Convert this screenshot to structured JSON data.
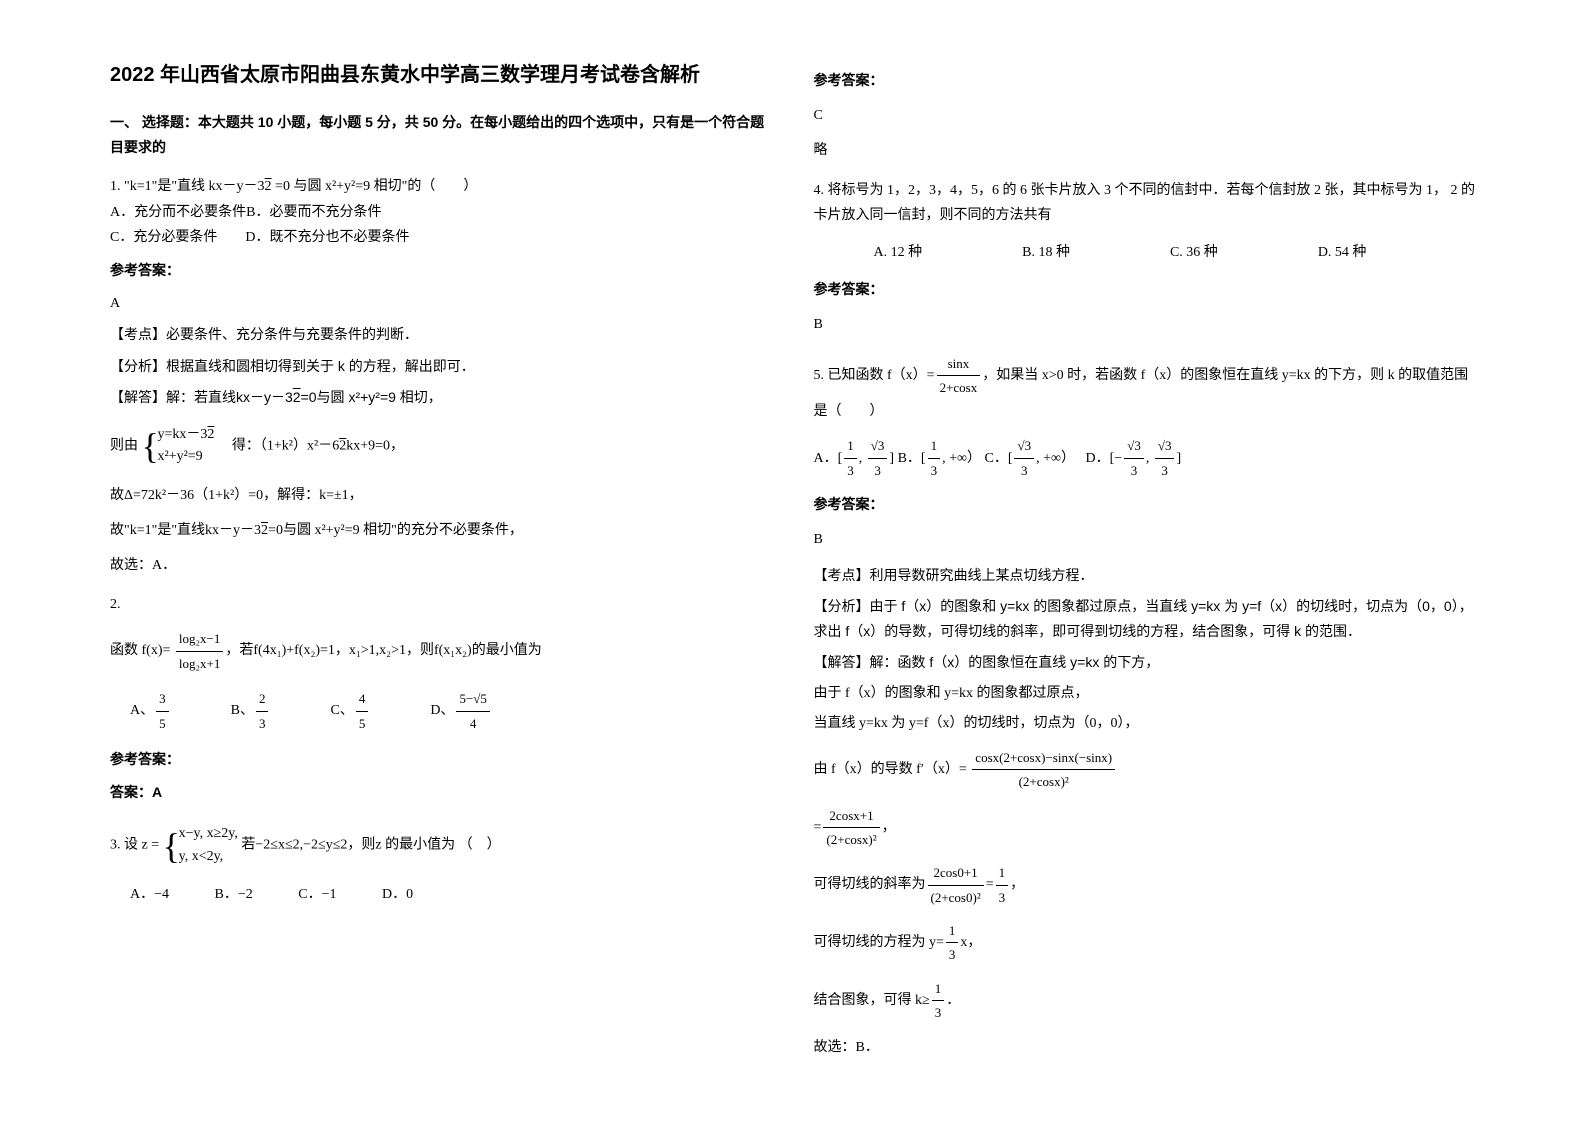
{
  "title": "2022 年山西省太原市阳曲县东黄水中学高三数学理月考试卷含解析",
  "section_a": "一、 选择题：本大题共 10 小题，每小题 5 分，共 50 分。在每小题给出的四个选项中，只有是一个符合题目要求的",
  "q1": {
    "stem_prefix": "1. \"k=1\"是\"直线 kx－y－3",
    "stem_suffix": " =0 与圆 x²+y²=9 相切\"的（　　）",
    "opt_a": "A．充分而不必要条件",
    "opt_b": "B．必要而不充分条件",
    "opt_c": "C．充分必要条件　　",
    "opt_d": "D．既不充分也不必要条件",
    "ans_label": "参考答案：",
    "ans": "A",
    "kp": "【考点】必要条件、充分条件与充要条件的判断．",
    "fx": "【分析】根据直线和圆相切得到关于 k 的方程，解出即可．",
    "jd_prefix": "【解答】解：若直线",
    "jd_mid": "=0与圆 x²+y²=9 相切，",
    "sys1_a": "y=kx－3",
    "sys1_b": "x²+y²=9",
    "sys_prefix": "则由",
    "sys_suffix": "　得：（1+k²）x²－6",
    "sys_suffix2": "kx+9=0，",
    "delta": "故Δ=72k²－36（1+k²）=0，解得：k=±1，",
    "conc_prefix": "故\"k=1\"是\"直线",
    "conc_suffix": "=0与圆 x²+y²=9 相切\"的充分不必要条件，",
    "pick": "故选：A．",
    "sqrt2": "√2"
  },
  "q2": {
    "num": "2.",
    "func_label": "函数",
    "func_expr1": "f(x)=",
    "func_num": "log₂x−1",
    "func_den": "log₂x+1",
    "cond_prefix": "，若",
    "cond_expr": "f(4x₁)+f(x₂)=1",
    "cond_mid": "，x₁>1,x₂>1，则",
    "cond_target": "f(x₁x₂)",
    "cond_suffix": "的最小值为",
    "opt_a_label": "A、",
    "opt_a_num": "3",
    "opt_a_den": "5",
    "opt_b_label": "B、",
    "opt_b_num": "2",
    "opt_b_den": "3",
    "opt_c_label": "C、",
    "opt_c_num": "4",
    "opt_c_den": "5",
    "opt_d_label": "D、",
    "opt_d_num": "5−√5",
    "opt_d_den": "4",
    "ans_label": "参考答案：",
    "ans": "答案：A"
  },
  "q3": {
    "prefix": "3. 设",
    "z_eq": "z =",
    "sys_a": "x−y,  x≥2y,",
    "sys_b": "y,      x<2y,",
    "cond_prefix": "若",
    "cond": "−2≤x≤2,−2≤y≤2",
    "suffix": "，则z 的最小值为 （　）",
    "opt_a": "A．−4",
    "opt_b": "B．−2",
    "opt_c": "C．−1",
    "opt_d": "D．0"
  },
  "q3ans": {
    "label": "参考答案：",
    "ans": "C",
    "brief": "略"
  },
  "q4": {
    "stem": "4. 将标号为 1，2，3，4，5，6 的 6 张卡片放入 3 个不同的信封中．若每个信封放 2 张，其中标号为 1， 2 的卡片放入同一信封，则不同的方法共有",
    "opt_a": "A.  12 种",
    "opt_b": "B.    18 种",
    "opt_c": "C. 36 种",
    "opt_d": "D.     54 种",
    "ans_label": "参考答案：",
    "ans": "B"
  },
  "q5": {
    "stem_prefix": "5. 已知函数 f（x）=",
    "frac_num": "sinx",
    "frac_den": "2+cosx",
    "stem_suffix": "，如果当 x>0 时，若函数 f（x）的图象恒在直线 y=kx 的下方，则 k 的取值范围是（　　）",
    "opt_a_label": "A．[",
    "opt_a_n1": "1",
    "opt_a_d1": "3",
    "opt_a_sep": ", ",
    "opt_a_n2": "√3",
    "opt_a_d2": "3",
    "opt_a_close": "]",
    "opt_b_label": "B．[",
    "opt_b_n1": "1",
    "opt_b_d1": "3",
    "opt_b_close": ", +∞）",
    "opt_c_label": "C．[",
    "opt_c_n1": "√3",
    "opt_c_d1": "3",
    "opt_c_close": ", +∞）",
    "opt_d_label": "D．[−",
    "opt_d_n1": "√3",
    "opt_d_d1": "3",
    "opt_d_sep": ", ",
    "opt_d_n2": "√3",
    "opt_d_d2": "3",
    "opt_d_close": "]",
    "ans_label": "参考答案：",
    "ans": "B",
    "kp": "【考点】利用导数研究曲线上某点切线方程．",
    "fx": "【分析】由于 f（x）的图象和 y=kx 的图象都过原点，当直线 y=kx 为 y=f（x）的切线时，切点为（0，0），求出 f（x）的导数，可得切线的斜率，即可得到切线的方程，结合图象，可得 k 的范围．",
    "jd1": "【解答】解：函数 f（x）的图象恒在直线 y=kx 的下方，",
    "jd2": "由于 f（x）的图象和 y=kx 的图象都过原点，",
    "jd3": "当直线 y=kx 为 y=f（x）的切线时，切点为（0，0），",
    "deriv_prefix": "由 f（x）的导数 f′（x）=",
    "deriv_num": "cosx(2+cosx)−sinx(−sinx)",
    "deriv_den": "(2+cosx)²",
    "deriv2_prefix": "=",
    "deriv2_num": "2cosx+1",
    "deriv2_den": "(2+cosx)²",
    "deriv2_suffix": "，",
    "slope_prefix": "可得切线的斜率为",
    "slope_num": "2cos0+1",
    "slope_den": "(2+cos0)²",
    "slope_eq": "=",
    "slope_n2": "1",
    "slope_d2": "3",
    "slope_suffix": "，",
    "tan_prefix": "可得切线的方程为 y=",
    "tan_num": "1",
    "tan_den": "3",
    "tan_suffix": "x，",
    "res_prefix": "结合图象，可得 k≥",
    "res_num": "1",
    "res_den": "3",
    "res_suffix": "．",
    "pick": "故选：B．"
  }
}
